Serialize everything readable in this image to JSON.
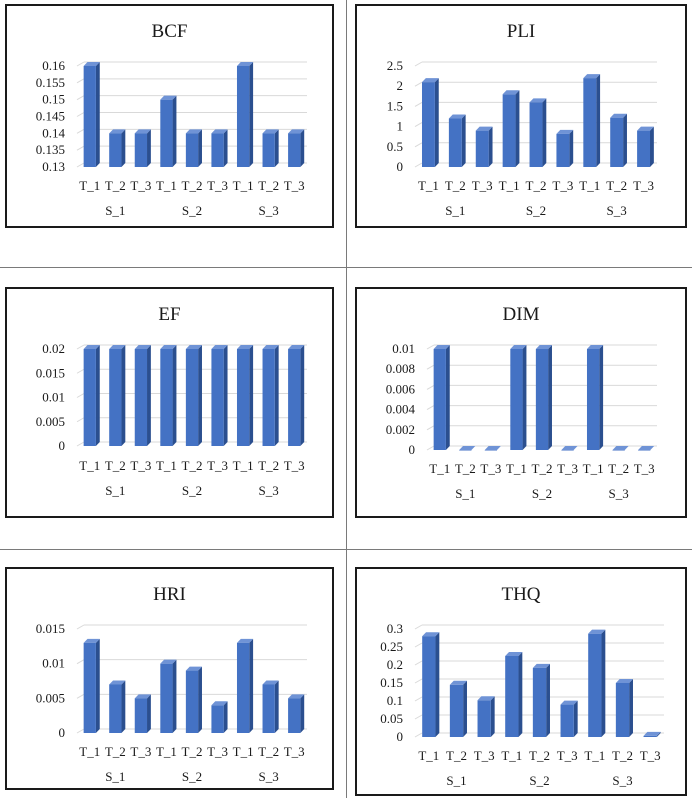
{
  "chart_data": [
    {
      "type": "bar",
      "title": "BCF",
      "categories": [
        "T_1",
        "T_2",
        "T_3",
        "T_1",
        "T_2",
        "T_3",
        "T_1",
        "T_2",
        "T_3"
      ],
      "groups": [
        "S_1",
        "S_2",
        "S_3"
      ],
      "values": [
        0.16,
        0.14,
        0.14,
        0.15,
        0.14,
        0.14,
        0.16,
        0.14,
        0.14
      ],
      "ylim": [
        0.13,
        0.16
      ],
      "yticks": [
        "0.13",
        "0.135",
        "0.14",
        "0.145",
        "0.15",
        "0.155",
        "0.16"
      ],
      "xlabel": "",
      "ylabel": "",
      "color": "#4472c4"
    },
    {
      "type": "bar",
      "title": "PLI",
      "categories": [
        "T_1",
        "T_2",
        "T_3",
        "T_1",
        "T_2",
        "T_3",
        "T_1",
        "T_2",
        "T_3"
      ],
      "groups": [
        "S_1",
        "S_2",
        "S_3"
      ],
      "values": [
        2.1,
        1.2,
        0.9,
        1.8,
        1.6,
        0.82,
        2.2,
        1.22,
        0.9
      ],
      "ylim": [
        0,
        2.5
      ],
      "yticks": [
        "0",
        "0.5",
        "1",
        "1.5",
        "2",
        "2.5"
      ],
      "xlabel": "",
      "ylabel": "",
      "color": "#4472c4"
    },
    {
      "type": "bar",
      "title": "EF",
      "categories": [
        "T_1",
        "T_2",
        "T_3",
        "T_1",
        "T_2",
        "T_3",
        "T_1",
        "T_2",
        "T_3"
      ],
      "groups": [
        "S_1",
        "S_2",
        "S_3"
      ],
      "values": [
        0.02,
        0.02,
        0.02,
        0.02,
        0.02,
        0.02,
        0.02,
        0.02,
        0.02
      ],
      "ylim": [
        0,
        0.02
      ],
      "yticks": [
        "0",
        "0.005",
        "0.01",
        "0.015",
        "0.02"
      ],
      "xlabel": "",
      "ylabel": "",
      "color": "#4472c4"
    },
    {
      "type": "bar",
      "title": "DIM",
      "categories": [
        "T_1",
        "T_2",
        "T_3",
        "T_1",
        "T_2",
        "T_3",
        "T_1",
        "T_2",
        "T_3"
      ],
      "groups": [
        "S_1",
        "S_2",
        "S_3"
      ],
      "values": [
        0.01,
        0,
        0,
        0.01,
        0.01,
        0,
        0.01,
        0,
        0
      ],
      "ylim": [
        0,
        0.01
      ],
      "yticks": [
        "0",
        "0.002",
        "0.004",
        "0.006",
        "0.008",
        "0.01"
      ],
      "xlabel": "",
      "ylabel": "",
      "color": "#4472c4"
    },
    {
      "type": "bar",
      "title": "HRI",
      "categories": [
        "T_1",
        "T_2",
        "T_3",
        "T_1",
        "T_2",
        "T_3",
        "T_1",
        "T_2",
        "T_3"
      ],
      "groups": [
        "S_1",
        "S_2",
        "S_3"
      ],
      "values": [
        0.013,
        0.007,
        0.005,
        0.01,
        0.009,
        0.004,
        0.013,
        0.007,
        0.005
      ],
      "ylim": [
        0,
        0.015
      ],
      "yticks": [
        "0",
        "0.005",
        "0.01",
        "0.015"
      ],
      "xlabel": "",
      "ylabel": "",
      "color": "#4472c4"
    },
    {
      "type": "bar",
      "title": "THQ",
      "categories": [
        "T_1",
        "T_2",
        "T_3",
        "T_1",
        "T_2",
        "T_3",
        "T_1",
        "T_2",
        "T_3"
      ],
      "groups": [
        "S_1",
        "S_2",
        "S_3"
      ],
      "values": [
        0.28,
        0.145,
        0.102,
        0.225,
        0.192,
        0.09,
        0.287,
        0.15,
        0.003
      ],
      "ylim": [
        0,
        0.3
      ],
      "yticks": [
        "0",
        "0.05",
        "0.1",
        "0.15",
        "0.2",
        "0.25",
        "0.3"
      ],
      "xlabel": "",
      "ylabel": "",
      "color": "#4472c4"
    }
  ]
}
